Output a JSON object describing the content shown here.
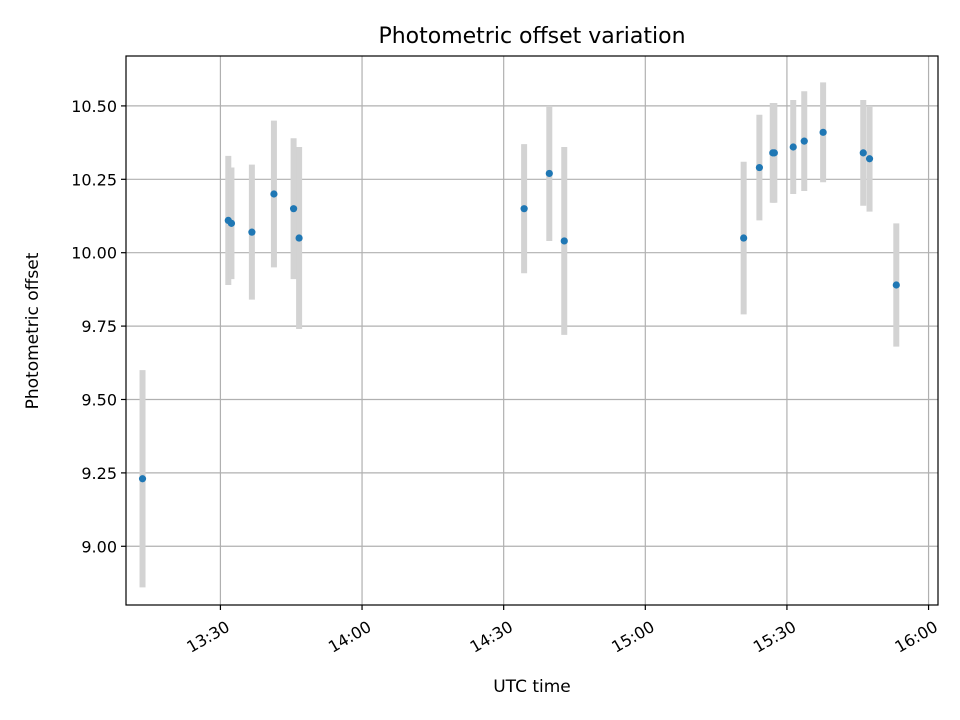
{
  "chart_data": {
    "type": "scatter",
    "title": "Photometric offset variation",
    "xlabel": "UTC time",
    "ylabel": "Photometric offset",
    "grid": true,
    "xlim": [
      "13:10",
      "16:02"
    ],
    "ylim": [
      8.8,
      10.67
    ],
    "x_ticks": [
      "13:30",
      "14:00",
      "14:30",
      "15:00",
      "15:30",
      "16:00"
    ],
    "y_ticks": [
      9.0,
      9.25,
      9.5,
      9.75,
      10.0,
      10.25,
      10.5
    ],
    "y_tick_labels": [
      "9.00",
      "9.25",
      "9.50",
      "9.75",
      "10.00",
      "10.25",
      "10.50"
    ],
    "colors": {
      "point": "#1f77b4",
      "errorbar": "#d3d3d3"
    },
    "points": [
      {
        "x": "13:13:30",
        "y": 9.23,
        "yerr": 0.37
      },
      {
        "x": "13:31:40",
        "y": 10.11,
        "yerr": 0.22
      },
      {
        "x": "13:32:20",
        "y": 10.1,
        "yerr": 0.19
      },
      {
        "x": "13:36:40",
        "y": 10.07,
        "yerr": 0.23
      },
      {
        "x": "13:41:20",
        "y": 10.2,
        "yerr": 0.25
      },
      {
        "x": "13:45:30",
        "y": 10.15,
        "yerr": 0.24
      },
      {
        "x": "13:46:40",
        "y": 10.05,
        "yerr": 0.31
      },
      {
        "x": "14:34:20",
        "y": 10.15,
        "yerr": 0.22
      },
      {
        "x": "14:39:40",
        "y": 10.27,
        "yerr": 0.23
      },
      {
        "x": "14:42:50",
        "y": 10.04,
        "yerr": 0.32
      },
      {
        "x": "15:20:50",
        "y": 10.05,
        "yerr": 0.26
      },
      {
        "x": "15:24:10",
        "y": 10.29,
        "yerr": 0.18
      },
      {
        "x": "15:27:00",
        "y": 10.34,
        "yerr": 0.17
      },
      {
        "x": "15:27:20",
        "y": 10.34,
        "yerr": 0.17
      },
      {
        "x": "15:31:20",
        "y": 10.36,
        "yerr": 0.16
      },
      {
        "x": "15:33:40",
        "y": 10.38,
        "yerr": 0.17
      },
      {
        "x": "15:37:40",
        "y": 10.41,
        "yerr": 0.17
      },
      {
        "x": "15:46:10",
        "y": 10.34,
        "yerr": 0.18
      },
      {
        "x": "15:47:30",
        "y": 10.32,
        "yerr": 0.18
      },
      {
        "x": "15:53:10",
        "y": 9.89,
        "yerr": 0.21
      }
    ]
  }
}
